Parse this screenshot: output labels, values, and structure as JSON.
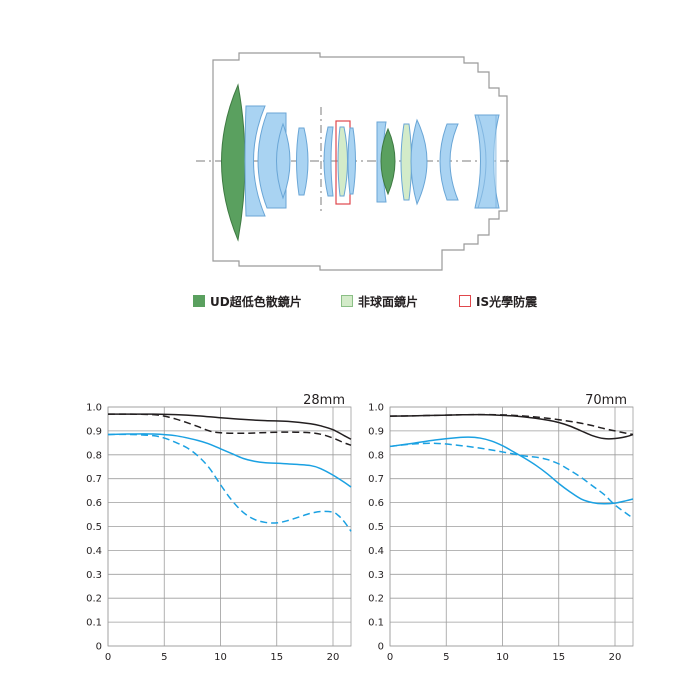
{
  "legend": {
    "items": [
      {
        "label": "UD超低色散鏡片",
        "fill": "#5aa05f",
        "border": "#5aa05f"
      },
      {
        "label": "非球面鏡片",
        "fill": "#d3ebc9",
        "border": "#8bbf86"
      },
      {
        "label": "IS光學防震",
        "fill": "#ffffff",
        "border": "#e0474c"
      }
    ]
  },
  "colors": {
    "ud": "#5aa05f",
    "aspherical": "#d3ebc9",
    "standard_lens": "#a9d3f2",
    "lens_outline": "#6aa6d6",
    "is_box": "#e0474c",
    "barrel": "#9a9a9a",
    "black_curve": "#231f20",
    "blue_curve": "#1ba1e2",
    "grid": "#9d9d9d"
  },
  "chart_data": [
    {
      "type": "line",
      "title": "28mm",
      "xlabel": "",
      "ylabel": "",
      "xlim": [
        0,
        21.6
      ],
      "ylim": [
        0,
        1.0
      ],
      "xticks": [
        0,
        5,
        10,
        15,
        20
      ],
      "yticks": [
        "0",
        "0.1",
        "0.2",
        "0.3",
        "0.4",
        "0.5",
        "0.6",
        "0.7",
        "0.8",
        "0.9",
        "1.0"
      ],
      "grid": true,
      "series": [
        {
          "style": "solid",
          "color": "black",
          "x": [
            0,
            2,
            4,
            6,
            8,
            10,
            12,
            14,
            16,
            18,
            19,
            20,
            21,
            21.6
          ],
          "y": [
            0.97,
            0.97,
            0.97,
            0.968,
            0.963,
            0.955,
            0.948,
            0.943,
            0.94,
            0.93,
            0.92,
            0.905,
            0.88,
            0.865
          ]
        },
        {
          "style": "dashed",
          "color": "black",
          "x": [
            0,
            2,
            4,
            5,
            6,
            7,
            8,
            9,
            10,
            12,
            14,
            16,
            18,
            19,
            20,
            21,
            21.6
          ],
          "y": [
            0.97,
            0.97,
            0.968,
            0.962,
            0.95,
            0.935,
            0.918,
            0.9,
            0.892,
            0.89,
            0.893,
            0.895,
            0.892,
            0.885,
            0.87,
            0.85,
            0.84
          ]
        },
        {
          "style": "solid",
          "color": "blue",
          "x": [
            0,
            2,
            4,
            6,
            8,
            9,
            10,
            11,
            12,
            13,
            14,
            16,
            18,
            19,
            20,
            21,
            21.6
          ],
          "y": [
            0.885,
            0.887,
            0.887,
            0.88,
            0.86,
            0.845,
            0.825,
            0.805,
            0.785,
            0.773,
            0.767,
            0.762,
            0.755,
            0.74,
            0.715,
            0.685,
            0.665
          ]
        },
        {
          "style": "dashed",
          "color": "blue",
          "x": [
            0,
            2,
            4,
            5,
            6,
            7,
            8,
            9,
            10,
            11,
            12,
            13,
            14,
            15,
            16,
            17,
            18,
            19,
            20,
            20.5,
            21,
            21.6
          ],
          "y": [
            0.885,
            0.885,
            0.88,
            0.87,
            0.852,
            0.83,
            0.795,
            0.745,
            0.675,
            0.61,
            0.56,
            0.53,
            0.517,
            0.515,
            0.525,
            0.54,
            0.555,
            0.563,
            0.56,
            0.545,
            0.52,
            0.48
          ]
        }
      ]
    },
    {
      "type": "line",
      "title": "70mm",
      "xlabel": "",
      "ylabel": "",
      "xlim": [
        0,
        21.6
      ],
      "ylim": [
        0,
        1.0
      ],
      "xticks": [
        0,
        5,
        10,
        15,
        20
      ],
      "yticks": [
        "0",
        "0.1",
        "0.2",
        "0.3",
        "0.4",
        "0.5",
        "0.6",
        "0.7",
        "0.8",
        "0.9",
        "1.0"
      ],
      "grid": true,
      "series": [
        {
          "style": "solid",
          "color": "black",
          "x": [
            0,
            2,
            4,
            6,
            8,
            10,
            12,
            14,
            15,
            16,
            17,
            18,
            19,
            20,
            21,
            21.6
          ],
          "y": [
            0.962,
            0.963,
            0.965,
            0.967,
            0.968,
            0.965,
            0.958,
            0.945,
            0.935,
            0.92,
            0.9,
            0.88,
            0.868,
            0.868,
            0.876,
            0.885
          ]
        },
        {
          "style": "dashed",
          "color": "black",
          "x": [
            0,
            2,
            4,
            6,
            8,
            10,
            12,
            14,
            16,
            17,
            18,
            19,
            20,
            21,
            21.6
          ],
          "y": [
            0.962,
            0.963,
            0.965,
            0.967,
            0.968,
            0.967,
            0.962,
            0.953,
            0.94,
            0.932,
            0.922,
            0.91,
            0.9,
            0.89,
            0.885
          ]
        },
        {
          "style": "solid",
          "color": "blue",
          "x": [
            0,
            2,
            4,
            6,
            7,
            8,
            9,
            10,
            11,
            12,
            13,
            14,
            15,
            16,
            17,
            18,
            19,
            20,
            21,
            21.6
          ],
          "y": [
            0.835,
            0.848,
            0.862,
            0.872,
            0.874,
            0.87,
            0.858,
            0.838,
            0.812,
            0.785,
            0.755,
            0.72,
            0.68,
            0.645,
            0.615,
            0.6,
            0.595,
            0.598,
            0.608,
            0.615
          ]
        },
        {
          "style": "dashed",
          "color": "blue",
          "x": [
            0,
            2,
            4,
            6,
            8,
            10,
            12,
            13,
            14,
            15,
            16,
            17,
            18,
            19,
            20,
            21,
            21.6
          ],
          "y": [
            0.835,
            0.845,
            0.848,
            0.84,
            0.828,
            0.812,
            0.795,
            0.79,
            0.78,
            0.762,
            0.735,
            0.705,
            0.67,
            0.635,
            0.59,
            0.555,
            0.535
          ]
        }
      ]
    }
  ]
}
